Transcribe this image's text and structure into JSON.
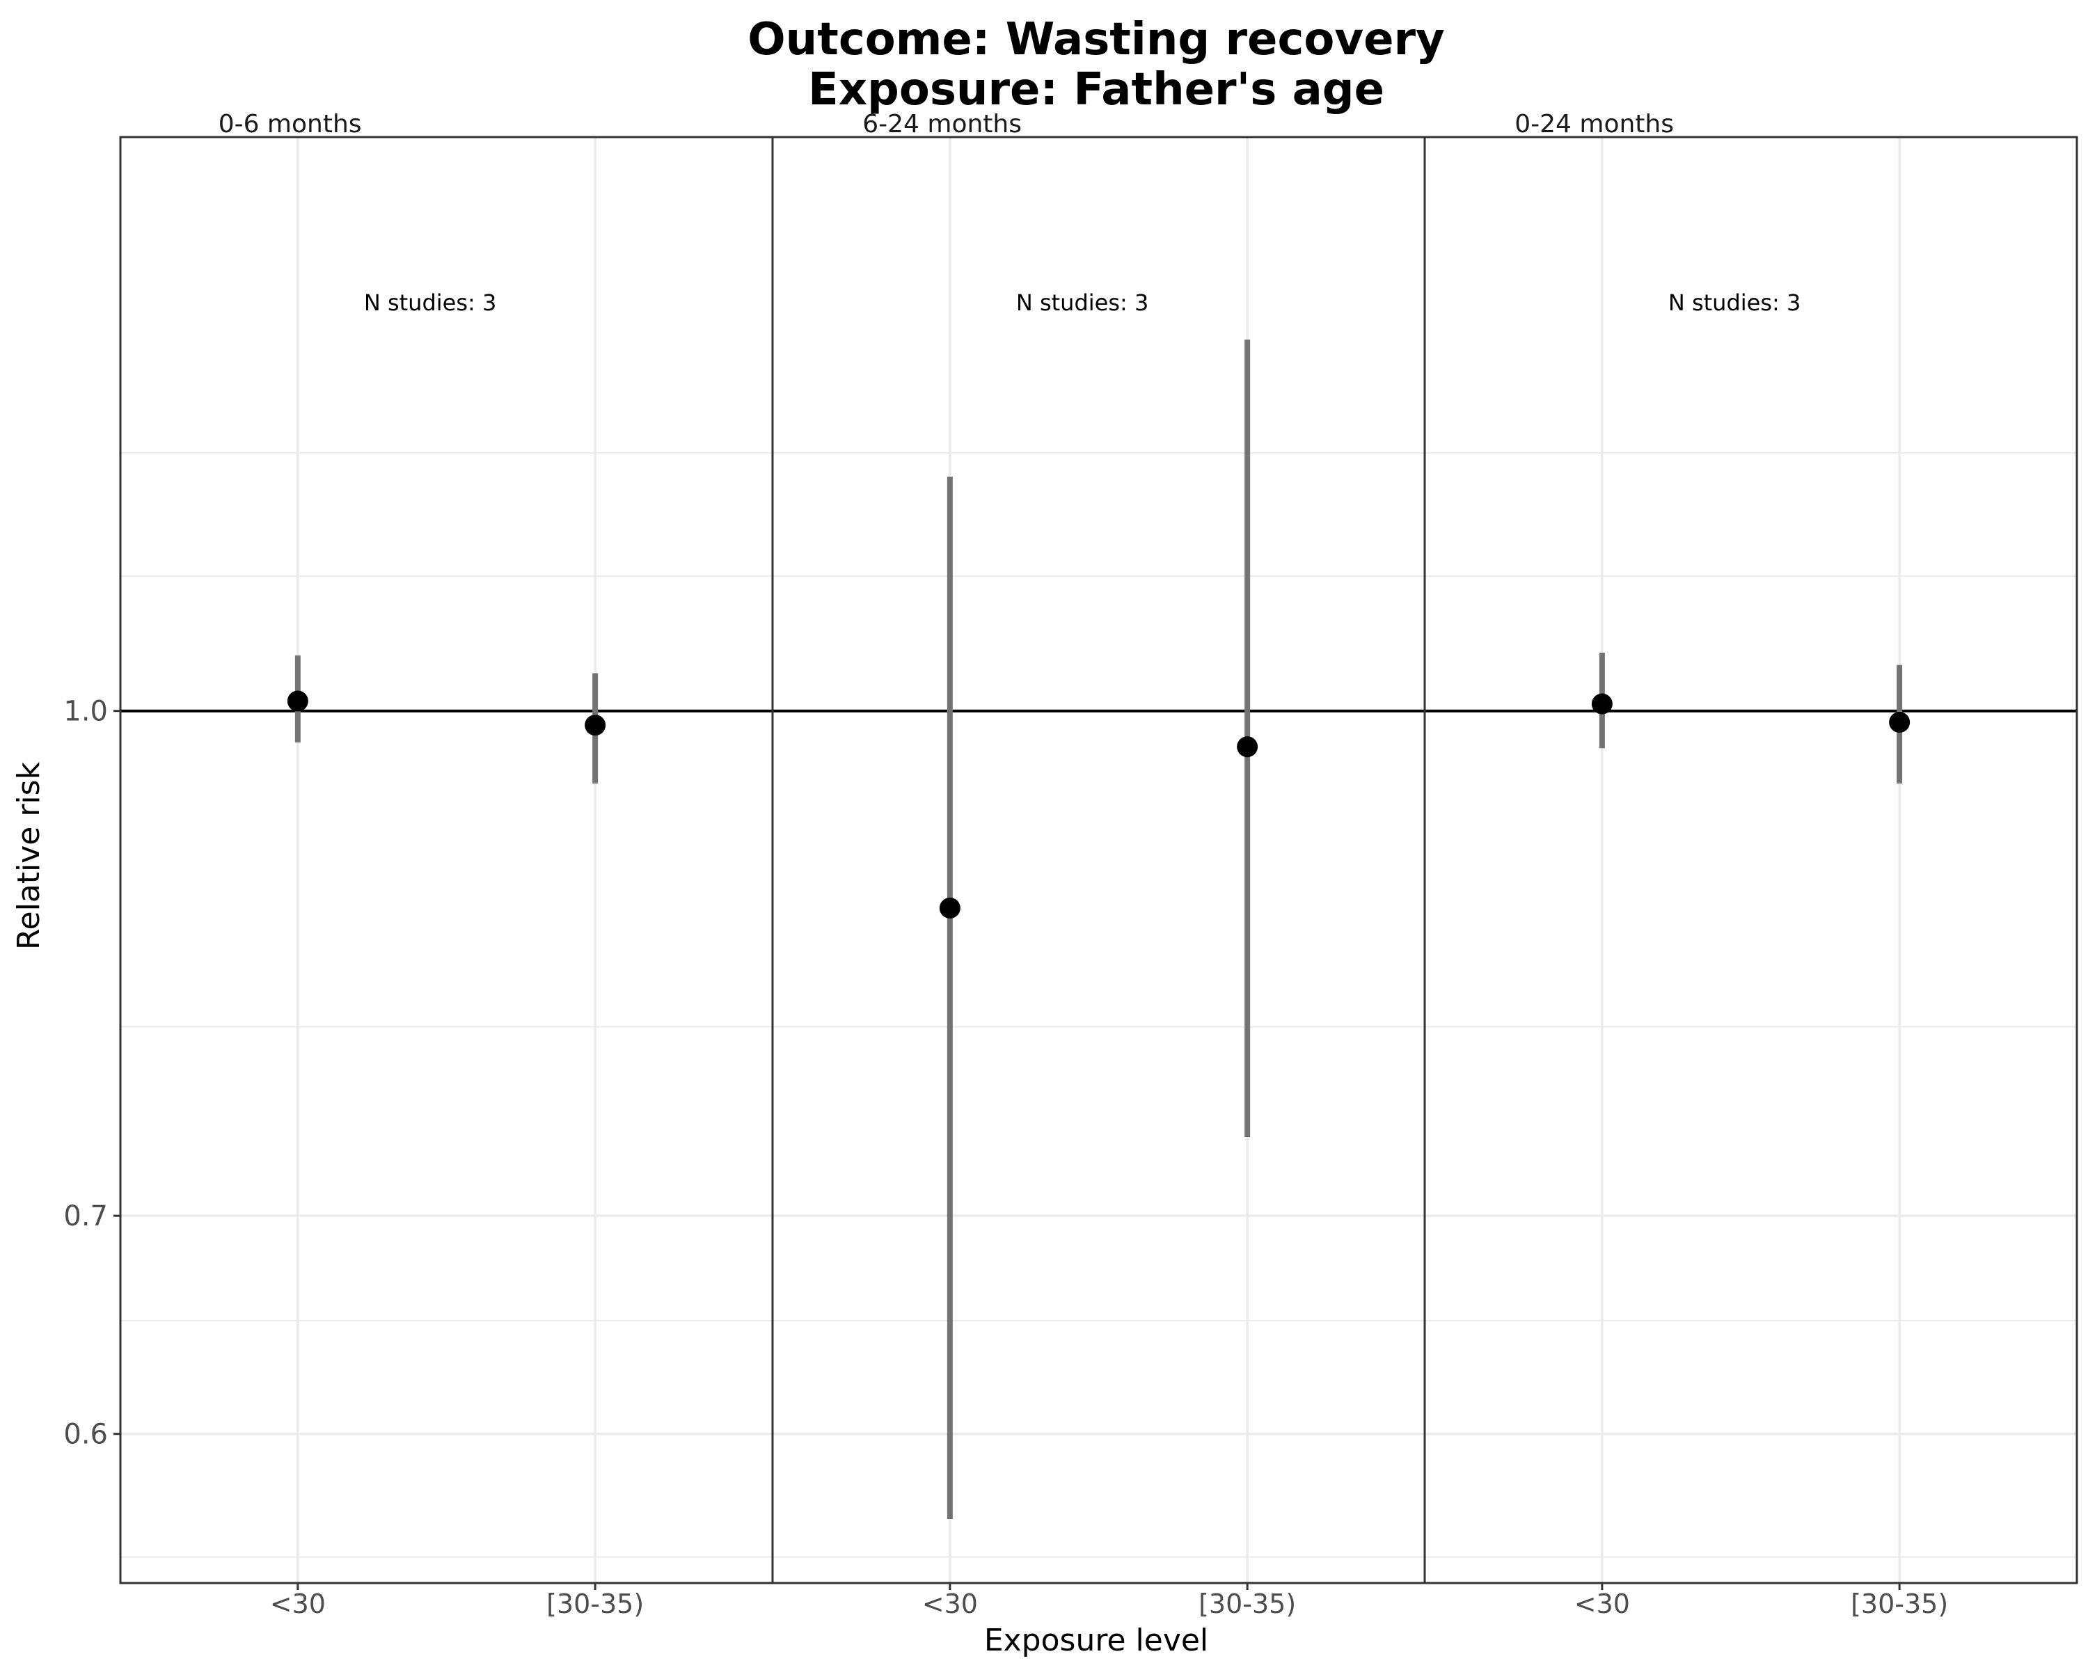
{
  "chart_data": {
    "type": "scatter",
    "title_line1": "Outcome: Wasting recovery",
    "title_line2": "Exposure: Father's age",
    "xlabel": "Exposure level",
    "ylabel": "Relative risk",
    "y_scale": "log",
    "ylim": [
      0.54,
      1.5
    ],
    "yticks": [
      0.6,
      0.7,
      1.0
    ],
    "ytick_labels": [
      "0.6",
      "0.7",
      "1.0"
    ],
    "y_minor_gridlines": [
      0.55,
      0.65,
      0.8,
      1.1,
      1.2
    ],
    "reference_line": 1.0,
    "categories": [
      "<30",
      "[30-35)"
    ],
    "grid": true,
    "panels": [
      {
        "label": "0-6 months",
        "annotation": "N studies: 3",
        "points": [
          {
            "x": "<30",
            "estimate": 1.007,
            "lower": 0.978,
            "upper": 1.04
          },
          {
            "x": "[30-35)",
            "estimate": 0.99,
            "lower": 0.95,
            "upper": 1.027
          }
        ]
      },
      {
        "label": "6-24 months",
        "annotation": "N studies: 3",
        "points": [
          {
            "x": "<30",
            "estimate": 0.87,
            "lower": 0.565,
            "upper": 1.18
          },
          {
            "x": "[30-35)",
            "estimate": 0.975,
            "lower": 0.74,
            "upper": 1.3
          }
        ]
      },
      {
        "label": "0-24 months",
        "annotation": "N studies: 3",
        "points": [
          {
            "x": "<30",
            "estimate": 1.005,
            "lower": 0.974,
            "upper": 1.042
          },
          {
            "x": "[30-35)",
            "estimate": 0.992,
            "lower": 0.95,
            "upper": 1.033
          }
        ]
      }
    ],
    "colors": {
      "point": "#000000",
      "interval": "#737373",
      "reference": "#000000",
      "grid": "#ebebeb",
      "border": "#333333"
    }
  }
}
